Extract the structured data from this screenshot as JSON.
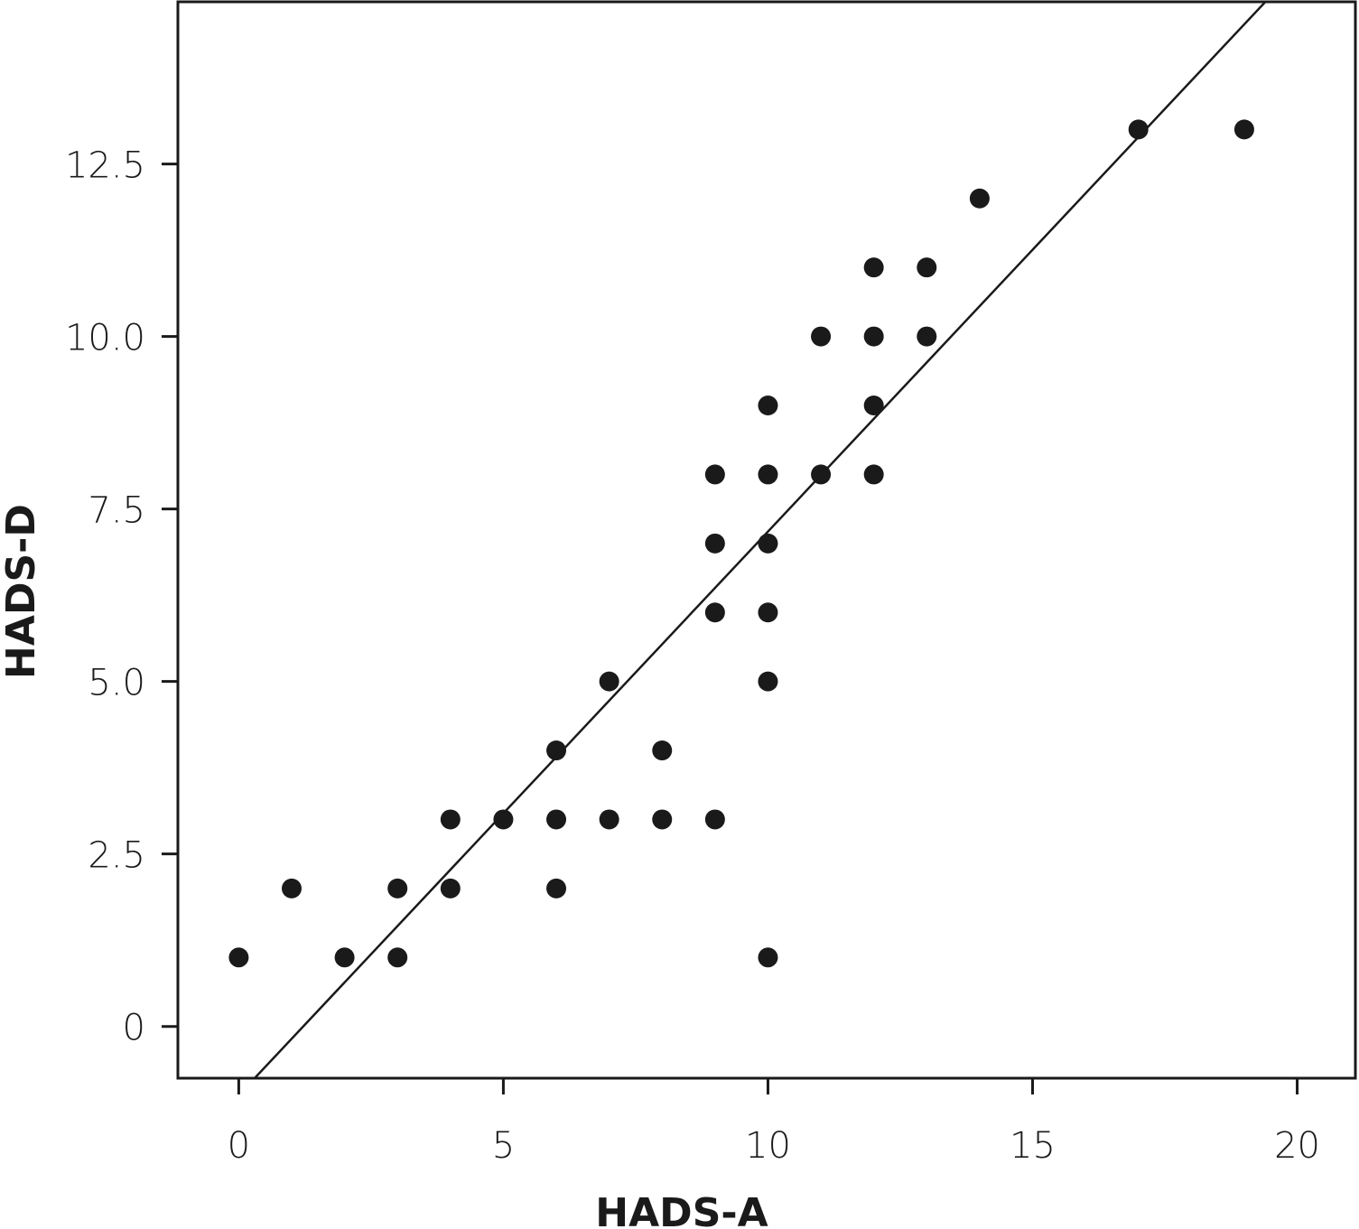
{
  "chart_data": {
    "type": "scatter",
    "title": "",
    "xlabel": "HADS-A",
    "ylabel": "HADS-D",
    "xlim": [
      -1.15,
      21.1
    ],
    "ylim": [
      -0.75,
      14.85
    ],
    "xticks": [
      0,
      5,
      10,
      15,
      20
    ],
    "yticks": [
      0,
      2.5,
      5.0,
      7.5,
      10.0,
      12.5
    ],
    "xtick_labels": [
      "0",
      "5",
      "10",
      "15",
      "20"
    ],
    "ytick_labels": [
      "0",
      "2.5",
      "5.0",
      "7.5",
      "10.0",
      "12.5"
    ],
    "grid": false,
    "legend": "none",
    "marker_color": "#1a1a1a",
    "points": [
      {
        "x": 0,
        "y": 1
      },
      {
        "x": 1,
        "y": 2
      },
      {
        "x": 2,
        "y": 1
      },
      {
        "x": 3,
        "y": 2
      },
      {
        "x": 3,
        "y": 1
      },
      {
        "x": 4,
        "y": 3
      },
      {
        "x": 4,
        "y": 2
      },
      {
        "x": 5,
        "y": 3
      },
      {
        "x": 6,
        "y": 4
      },
      {
        "x": 6,
        "y": 3
      },
      {
        "x": 6,
        "y": 2
      },
      {
        "x": 7,
        "y": 5
      },
      {
        "x": 7,
        "y": 3
      },
      {
        "x": 8,
        "y": 4
      },
      {
        "x": 8,
        "y": 3
      },
      {
        "x": 9,
        "y": 8
      },
      {
        "x": 9,
        "y": 7
      },
      {
        "x": 9,
        "y": 6
      },
      {
        "x": 9,
        "y": 3
      },
      {
        "x": 10,
        "y": 9
      },
      {
        "x": 10,
        "y": 8
      },
      {
        "x": 10,
        "y": 7
      },
      {
        "x": 10,
        "y": 6
      },
      {
        "x": 10,
        "y": 5
      },
      {
        "x": 10,
        "y": 1
      },
      {
        "x": 11,
        "y": 10
      },
      {
        "x": 11,
        "y": 8
      },
      {
        "x": 12,
        "y": 11
      },
      {
        "x": 12,
        "y": 10
      },
      {
        "x": 12,
        "y": 9
      },
      {
        "x": 12,
        "y": 8
      },
      {
        "x": 13,
        "y": 11
      },
      {
        "x": 13,
        "y": 10
      },
      {
        "x": 14,
        "y": 12
      },
      {
        "x": 17,
        "y": 13
      },
      {
        "x": 19,
        "y": 13
      }
    ],
    "fit_line": {
      "x1": 0.3,
      "y1": -0.75,
      "x2": 19.4,
      "y2": 14.85
    }
  }
}
